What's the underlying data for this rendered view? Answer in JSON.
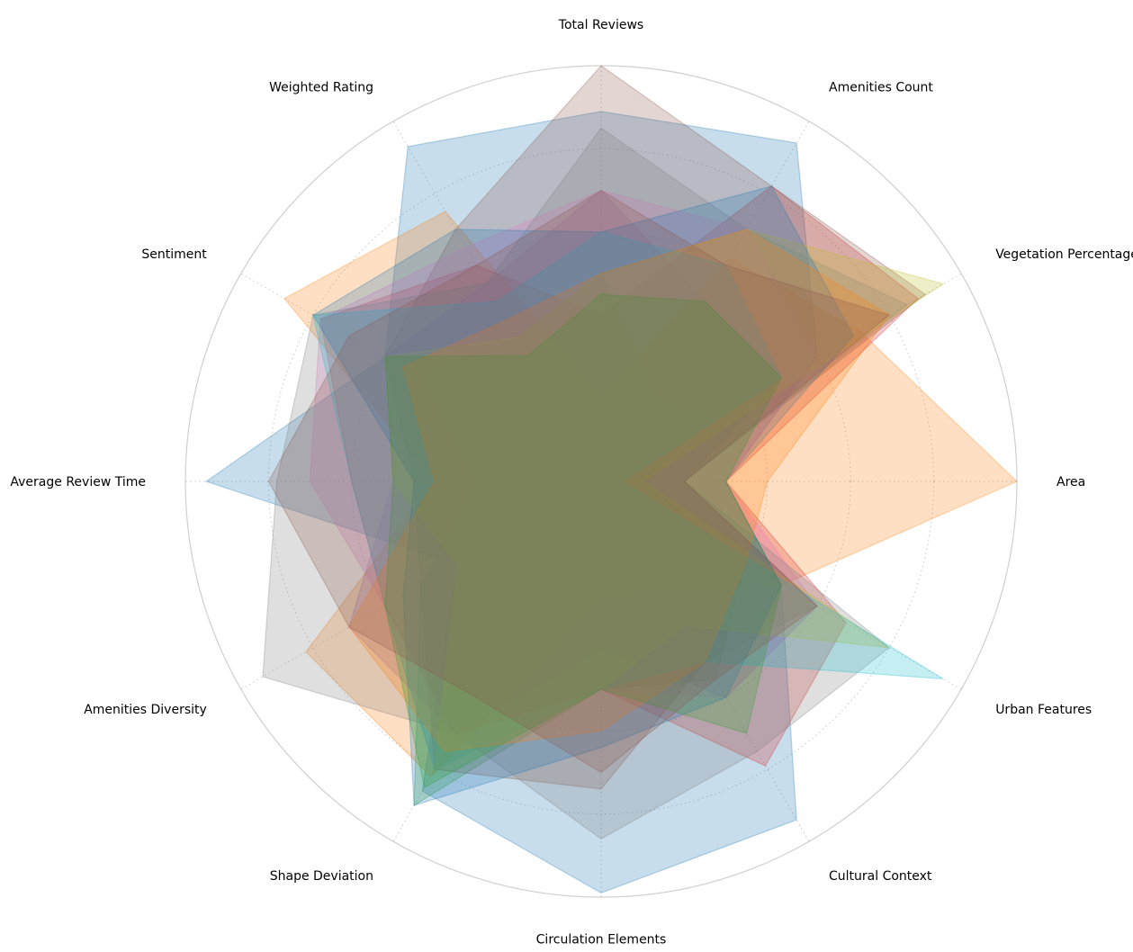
{
  "chart_data": {
    "type": "radar",
    "title": "",
    "axes": [
      "Area",
      "Vegetation Percentage",
      "Amenities Count",
      "Total Reviews",
      "Weighted Rating",
      "Sentiment",
      "Average Review Time",
      "Amenities Diversity",
      "Shape Deviation",
      "Circulation Elements",
      "Cultural Context",
      "Urban Features"
    ],
    "rlim": [
      0,
      1
    ],
    "grid_rings": [
      0.2,
      0.4,
      0.6,
      0.8,
      1.0
    ],
    "series": [
      {
        "color": "#1f77b4",
        "values": [
          0.3,
          0.6,
          0.94,
          0.89,
          0.93,
          0.6,
          0.95,
          0.4,
          0.86,
          0.99,
          0.94,
          0.5
        ]
      },
      {
        "color": "#ff7f0e",
        "values": [
          1.0,
          0.72,
          0.62,
          0.2,
          0.75,
          0.88,
          0.4,
          0.82,
          0.82,
          0.28,
          0.3,
          0.5
        ]
      },
      {
        "color": "#2ca02c",
        "values": [
          0.1,
          0.3,
          0.25,
          0.5,
          0.4,
          0.5,
          0.3,
          0.5,
          0.9,
          0.5,
          0.55,
          0.4
        ]
      },
      {
        "color": "#d62728",
        "values": [
          0.3,
          0.88,
          0.82,
          0.4,
          0.6,
          0.78,
          0.6,
          0.6,
          0.7,
          0.5,
          0.79,
          0.68
        ]
      },
      {
        "color": "#9467bd",
        "values": [
          0.2,
          0.5,
          0.5,
          0.7,
          0.55,
          0.6,
          0.5,
          0.7,
          0.7,
          0.4,
          0.6,
          0.6
        ]
      },
      {
        "color": "#8c564b",
        "values": [
          0.2,
          0.9,
          0.82,
          1.0,
          0.7,
          0.6,
          0.45,
          0.5,
          0.8,
          0.74,
          0.5,
          0.6
        ]
      },
      {
        "color": "#e377c2",
        "values": [
          0.3,
          0.6,
          0.7,
          0.7,
          0.65,
          0.78,
          0.7,
          0.6,
          0.8,
          0.5,
          0.6,
          0.6
        ]
      },
      {
        "color": "#7f7f7f",
        "values": [
          0.2,
          0.85,
          0.7,
          0.85,
          0.55,
          0.8,
          0.78,
          0.94,
          0.7,
          0.86,
          0.75,
          0.8
        ]
      },
      {
        "color": "#bcbd22",
        "values": [
          0.1,
          0.95,
          0.7,
          0.5,
          0.4,
          0.6,
          0.5,
          0.4,
          0.8,
          0.5,
          0.4,
          0.8
        ]
      },
      {
        "color": "#17becf",
        "values": [
          0.05,
          0.5,
          0.6,
          0.6,
          0.5,
          0.8,
          0.6,
          0.6,
          0.8,
          0.5,
          0.5,
          0.95
        ]
      },
      {
        "color": "#1f77b4",
        "values": [
          0.3,
          0.7,
          0.82,
          0.6,
          0.7,
          0.8,
          0.45,
          0.55,
          0.9,
          0.64,
          0.6,
          0.5
        ]
      },
      {
        "color": "#ff7f0e",
        "values": [
          0.4,
          0.8,
          0.7,
          0.5,
          0.45,
          0.55,
          0.4,
          0.7,
          0.75,
          0.6,
          0.5,
          0.4
        ]
      },
      {
        "color": "#2ca02c",
        "values": [
          0.3,
          0.5,
          0.5,
          0.45,
          0.35,
          0.6,
          0.5,
          0.6,
          0.85,
          0.5,
          0.7,
          0.5
        ]
      },
      {
        "color": "#8c564b",
        "values": [
          0.2,
          0.8,
          0.6,
          0.7,
          0.6,
          0.7,
          0.8,
          0.7,
          0.6,
          0.7,
          0.55,
          0.6
        ]
      }
    ]
  }
}
